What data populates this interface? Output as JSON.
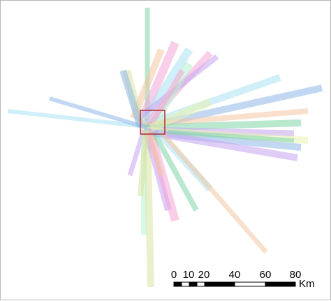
{
  "scale_bar": {
    "labels": [
      "0",
      "10",
      "20",
      "40",
      "60",
      "80"
    ],
    "unit": "Km"
  },
  "colors": {
    "study_area_outline": "#b0202a",
    "scale_bar": "#000000",
    "frame": "#b8b8b8"
  },
  "palette": [
    "#7fd6a8",
    "#f2a6d6",
    "#a9e2f2",
    "#c6a4f0",
    "#f2c6a4",
    "#d8e3a0",
    "#8fb8e8",
    "#e8f2b0",
    "#b8f0d0"
  ]
}
